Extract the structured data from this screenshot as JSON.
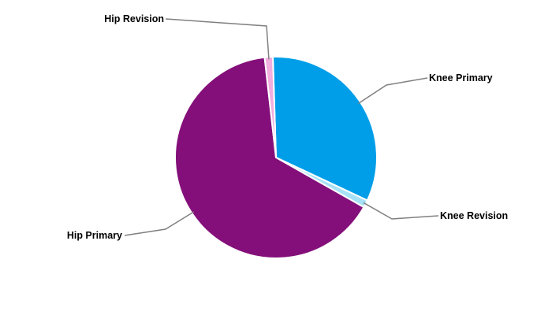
{
  "chart_data": {
    "type": "pie",
    "title": "",
    "start_angle_deg": -1.8,
    "direction": "clockwise",
    "slices": [
      {
        "label": "Knee Primary",
        "value": 32.5,
        "color": "#009EE8"
      },
      {
        "label": "Knee Revision",
        "value": 1.2,
        "color": "#A6E1F6"
      },
      {
        "label": "Hip Primary",
        "value": 65.0,
        "color": "#840F7A"
      },
      {
        "label": "Hip Revision",
        "value": 1.3,
        "color": "#F2AEDF"
      }
    ],
    "leader_line_color": "#808080",
    "legend": "none"
  }
}
